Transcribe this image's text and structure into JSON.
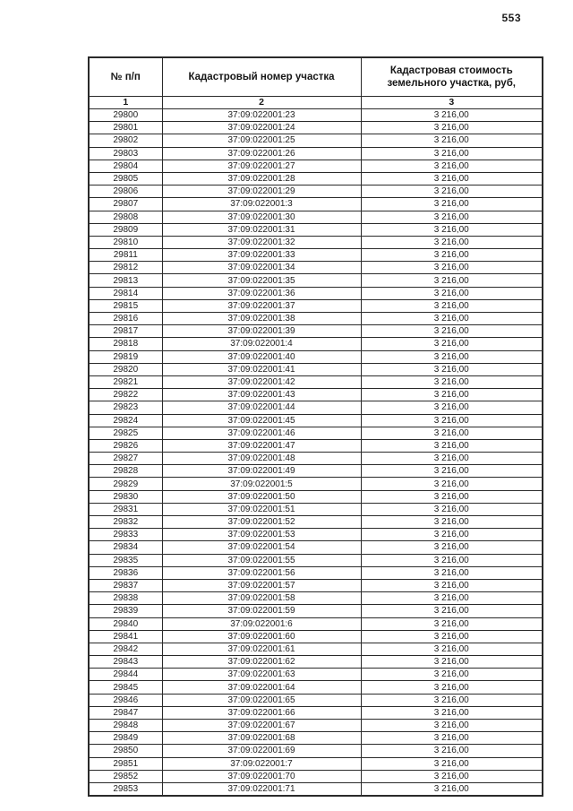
{
  "page": {
    "number": "553"
  },
  "table": {
    "columns": [
      {
        "header": "№ п/п",
        "index": "1"
      },
      {
        "header": "Кадастровый номер участка",
        "index": "2"
      },
      {
        "header": "Кадастровая стоимость земельного участка, руб,",
        "index": "3"
      }
    ],
    "rows": [
      [
        "29800",
        "37:09:022001:23",
        "3 216,00"
      ],
      [
        "29801",
        "37:09:022001:24",
        "3 216,00"
      ],
      [
        "29802",
        "37:09:022001:25",
        "3 216,00"
      ],
      [
        "29803",
        "37:09:022001:26",
        "3 216,00"
      ],
      [
        "29804",
        "37:09:022001:27",
        "3 216,00"
      ],
      [
        "29805",
        "37:09:022001:28",
        "3 216,00"
      ],
      [
        "29806",
        "37:09:022001:29",
        "3 216,00"
      ],
      [
        "29807",
        "37:09:022001:3",
        "3 216,00"
      ],
      [
        "29808",
        "37:09:022001:30",
        "3 216,00"
      ],
      [
        "29809",
        "37:09:022001:31",
        "3 216,00"
      ],
      [
        "29810",
        "37:09:022001:32",
        "3 216,00"
      ],
      [
        "29811",
        "37:09:022001:33",
        "3 216,00"
      ],
      [
        "29812",
        "37:09:022001:34",
        "3 216,00"
      ],
      [
        "29813",
        "37:09:022001:35",
        "3 216,00"
      ],
      [
        "29814",
        "37:09:022001:36",
        "3 216,00"
      ],
      [
        "29815",
        "37:09:022001:37",
        "3 216,00"
      ],
      [
        "29816",
        "37:09:022001:38",
        "3 216,00"
      ],
      [
        "29817",
        "37:09:022001:39",
        "3 216,00"
      ],
      [
        "29818",
        "37:09:022001:4",
        "3 216,00"
      ],
      [
        "29819",
        "37:09:022001:40",
        "3 216,00"
      ],
      [
        "29820",
        "37:09:022001:41",
        "3 216,00"
      ],
      [
        "29821",
        "37:09:022001:42",
        "3 216,00"
      ],
      [
        "29822",
        "37:09:022001:43",
        "3 216,00"
      ],
      [
        "29823",
        "37:09:022001:44",
        "3 216,00"
      ],
      [
        "29824",
        "37:09:022001:45",
        "3 216,00"
      ],
      [
        "29825",
        "37:09:022001:46",
        "3 216,00"
      ],
      [
        "29826",
        "37:09:022001:47",
        "3 216,00"
      ],
      [
        "29827",
        "37:09:022001:48",
        "3 216,00"
      ],
      [
        "29828",
        "37:09:022001:49",
        "3 216,00"
      ],
      [
        "29829",
        "37:09:022001:5",
        "3 216,00"
      ],
      [
        "29830",
        "37:09:022001:50",
        "3 216,00"
      ],
      [
        "29831",
        "37:09:022001:51",
        "3 216,00"
      ],
      [
        "29832",
        "37:09:022001:52",
        "3 216,00"
      ],
      [
        "29833",
        "37:09:022001:53",
        "3 216,00"
      ],
      [
        "29834",
        "37:09:022001:54",
        "3 216,00"
      ],
      [
        "29835",
        "37:09:022001:55",
        "3 216,00"
      ],
      [
        "29836",
        "37:09:022001:56",
        "3 216,00"
      ],
      [
        "29837",
        "37:09:022001:57",
        "3 216,00"
      ],
      [
        "29838",
        "37:09:022001:58",
        "3 216,00"
      ],
      [
        "29839",
        "37:09:022001:59",
        "3 216,00"
      ],
      [
        "29840",
        "37:09:022001:6",
        "3 216,00"
      ],
      [
        "29841",
        "37:09:022001:60",
        "3 216,00"
      ],
      [
        "29842",
        "37:09:022001:61",
        "3 216,00"
      ],
      [
        "29843",
        "37:09:022001:62",
        "3 216,00"
      ],
      [
        "29844",
        "37:09:022001:63",
        "3 216,00"
      ],
      [
        "29845",
        "37:09:022001:64",
        "3 216,00"
      ],
      [
        "29846",
        "37:09:022001:65",
        "3 216,00"
      ],
      [
        "29847",
        "37:09:022001:66",
        "3 216,00"
      ],
      [
        "29848",
        "37:09:022001:67",
        "3 216,00"
      ],
      [
        "29849",
        "37:09:022001:68",
        "3 216,00"
      ],
      [
        "29850",
        "37:09:022001:69",
        "3 216,00"
      ],
      [
        "29851",
        "37:09:022001:7",
        "3 216,00"
      ],
      [
        "29852",
        "37:09:022001:70",
        "3 216,00"
      ],
      [
        "29853",
        "37:09:022001:71",
        "3 216,00"
      ]
    ]
  }
}
